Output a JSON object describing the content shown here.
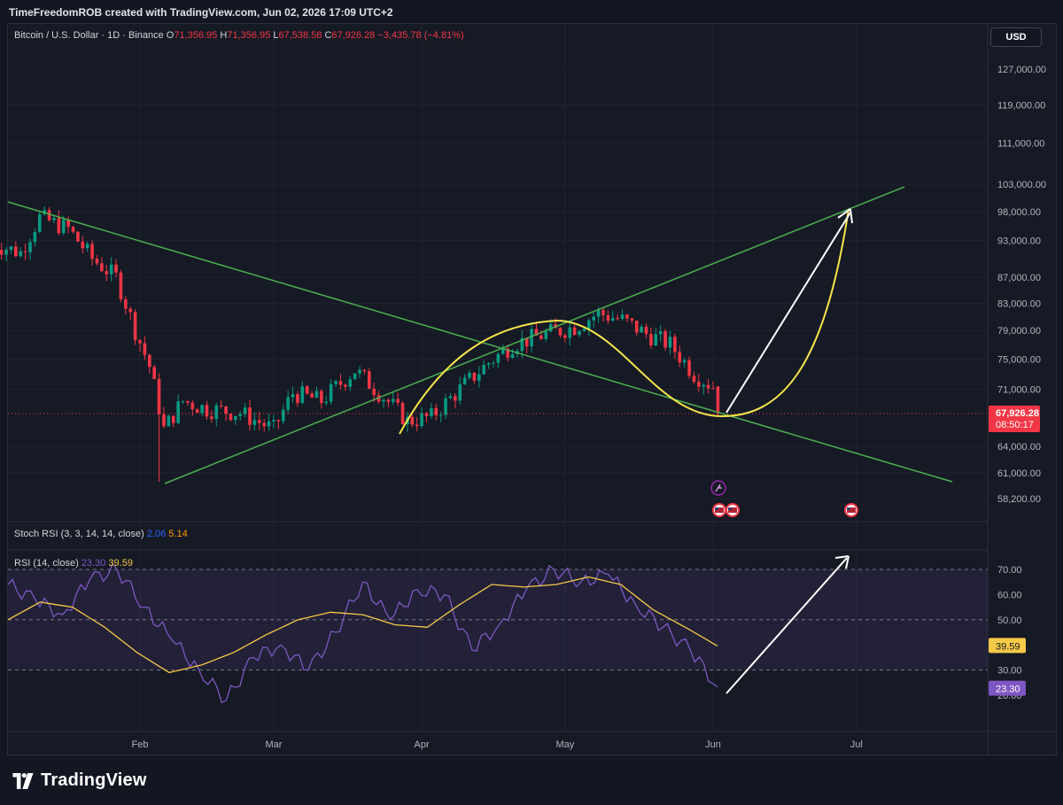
{
  "header": {
    "caption": "TimeFreedomROB created with TradingView.com, Jun 02, 2026 17:09 UTC+2"
  },
  "symbol_legend": {
    "symbol": "Bitcoin / U.S. Dollar · 1D · Binance",
    "open_label": "O",
    "open": "71,356.95",
    "high_label": "H",
    "high": "71,356.95",
    "low_label": "L",
    "low": "67,538.58",
    "close_label": "C",
    "close": "67,926.28",
    "change": "−3,435.78 (−4.81%)"
  },
  "currency_button": "USD",
  "price_axis": {
    "ticks": [
      "127,000.00",
      "119,000.00",
      "111,000.00",
      "103,000.00",
      "98,000.00",
      "93,000.00",
      "87,000.00",
      "83,000.00",
      "79,000.00",
      "75,000.00",
      "71,000.00",
      "64,000.00",
      "61,000.00",
      "58,200.00"
    ],
    "last_price": "67,926.28",
    "countdown": "08:50:17"
  },
  "stoch_rsi": {
    "label": "Stoch RSI (3, 3, 14, 14, close)",
    "k": "2.06",
    "d": "5.14"
  },
  "rsi": {
    "label": "RSI (14, close)",
    "value": "23.30",
    "ma": "39.59",
    "axis_ticks": [
      "70.00",
      "60.00",
      "50.00",
      "30.00",
      "20.00"
    ],
    "value_badge": "23.30",
    "ma_badge": "39.59"
  },
  "time_axis": [
    "Feb",
    "Mar",
    "Apr",
    "May",
    "Jun",
    "Jul"
  ],
  "brand": "TradingView",
  "colors": {
    "up": "#089981",
    "down": "#f23645",
    "trendline": "#4caf50",
    "curve": "#f7e64b",
    "rsi": "#7e57c2",
    "rsi_ma": "#f7c948"
  },
  "chart_data": [
    {
      "type": "candlestick",
      "title": "Bitcoin / U.S. Dollar · 1D · Binance",
      "ylim": [
        56000,
        131000
      ],
      "x_range": [
        "2026-01-01",
        "2026-07-20"
      ],
      "approx_close_path": [
        [
          "2026-01-01",
          92500
        ],
        [
          "2026-01-07",
          91000
        ],
        [
          "2026-01-11",
          97000
        ],
        [
          "2026-01-17",
          95000
        ],
        [
          "2026-01-22",
          90000
        ],
        [
          "2026-01-27",
          87000
        ],
        [
          "2026-01-31",
          79000
        ],
        [
          "2026-02-03",
          74000
        ],
        [
          "2026-02-06",
          66000
        ],
        [
          "2026-02-10",
          69500
        ],
        [
          "2026-02-15",
          68500
        ],
        [
          "2026-02-22",
          68000
        ],
        [
          "2026-03-01",
          66000
        ],
        [
          "2026-03-05",
          70500
        ],
        [
          "2026-03-11",
          69500
        ],
        [
          "2026-03-18",
          73500
        ],
        [
          "2026-03-24",
          70000
        ],
        [
          "2026-03-29",
          67000
        ],
        [
          "2026-04-03",
          67500
        ],
        [
          "2026-04-09",
          71000
        ],
        [
          "2026-04-15",
          74500
        ],
        [
          "2026-04-20",
          77000
        ],
        [
          "2026-04-27",
          78500
        ],
        [
          "2026-05-03",
          79500
        ],
        [
          "2026-05-08",
          81500
        ],
        [
          "2026-05-13",
          80500
        ],
        [
          "2026-05-18",
          78500
        ],
        [
          "2026-05-23",
          77000
        ],
        [
          "2026-05-28",
          73000
        ],
        [
          "2026-06-01",
          71357
        ],
        [
          "2026-06-02",
          67926
        ]
      ],
      "last": {
        "open": 71356.95,
        "high": 71356.95,
        "low": 67538.58,
        "close": 67926.28
      }
    },
    {
      "type": "line",
      "title": "RSI (14, close)",
      "ylim": [
        15,
        75
      ],
      "bands": [
        30,
        50,
        70
      ],
      "series": [
        {
          "name": "RSI",
          "values": [
            64,
            58,
            52,
            66,
            70,
            55,
            42,
            30,
            18,
            35,
            40,
            30,
            45,
            65,
            50,
            62,
            60,
            38,
            48,
            62,
            70,
            65,
            68,
            56,
            47,
            38,
            23.3
          ]
        },
        {
          "name": "MA",
          "values": [
            50,
            57,
            55,
            47,
            37,
            29,
            32,
            37,
            44,
            50,
            53,
            52,
            48,
            47,
            56,
            64,
            63,
            64,
            67,
            64,
            54,
            47,
            39.59
          ]
        }
      ]
    }
  ]
}
